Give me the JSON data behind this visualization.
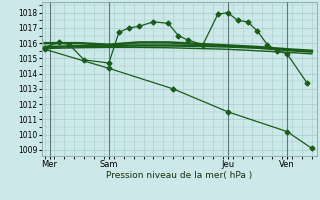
{
  "background_color": "#cce8e8",
  "grid_color": "#a8cccc",
  "line_color": "#1a5c1a",
  "xlabel": "Pression niveau de la mer( hPa )",
  "ylim_min": 1008.6,
  "ylim_max": 1018.7,
  "yticks": [
    1009,
    1010,
    1011,
    1012,
    1013,
    1014,
    1015,
    1016,
    1017,
    1018
  ],
  "xlim_min": -0.3,
  "xlim_max": 27.5,
  "xtick_labels": [
    "Mer",
    "Sam",
    "Jeu",
    "Ven"
  ],
  "xtick_positions": [
    0.5,
    6.5,
    18.5,
    24.5
  ],
  "vline_positions": [
    0.5,
    6.5,
    18.5,
    24.5
  ],
  "series1_x": [
    0.0,
    1.5,
    2.5,
    4.0,
    6.5,
    7.5,
    8.5,
    9.5,
    11.0,
    12.5,
    13.5,
    14.5,
    16.0,
    17.5,
    18.5,
    19.5,
    20.5,
    21.5,
    22.5,
    23.5,
    24.5,
    26.5
  ],
  "series1_y": [
    1015.7,
    1016.1,
    1015.9,
    1014.9,
    1014.7,
    1016.7,
    1017.0,
    1017.1,
    1017.4,
    1017.3,
    1016.5,
    1016.2,
    1015.9,
    1017.9,
    1018.0,
    1017.5,
    1017.4,
    1016.8,
    1015.9,
    1015.5,
    1015.3,
    1013.4
  ],
  "series1_marker": "D",
  "series1_markersize": 2.5,
  "series1_linewidth": 0.9,
  "series2_x": [
    0.0,
    3.5,
    6.5,
    9.5,
    12.5,
    15.5,
    18.5,
    21.5,
    24.5,
    27.0
  ],
  "series2_y": [
    1016.0,
    1016.0,
    1015.9,
    1016.05,
    1016.05,
    1015.95,
    1015.85,
    1015.75,
    1015.6,
    1015.5
  ],
  "series2_linewidth": 1.8,
  "series3_x": [
    0.0,
    3.5,
    6.5,
    9.5,
    12.5,
    15.5,
    18.5,
    21.5,
    24.5,
    27.0
  ],
  "series3_y": [
    1015.75,
    1015.8,
    1015.82,
    1015.85,
    1015.85,
    1015.82,
    1015.78,
    1015.7,
    1015.55,
    1015.45
  ],
  "series3_linewidth": 1.8,
  "series4_x": [
    0.0,
    3.5,
    6.5,
    9.5,
    12.5,
    15.5,
    18.5,
    21.5,
    24.5,
    27.0
  ],
  "series4_y": [
    1015.65,
    1015.7,
    1015.72,
    1015.72,
    1015.7,
    1015.65,
    1015.6,
    1015.5,
    1015.4,
    1015.3
  ],
  "series4_linewidth": 1.0,
  "series5_x": [
    0.0,
    6.5,
    13.0,
    18.5,
    24.5,
    27.0
  ],
  "series5_y": [
    1015.6,
    1014.35,
    1013.0,
    1011.5,
    1010.2,
    1009.1
  ],
  "series5_marker": "D",
  "series5_markersize": 2.5,
  "series5_linewidth": 0.9
}
